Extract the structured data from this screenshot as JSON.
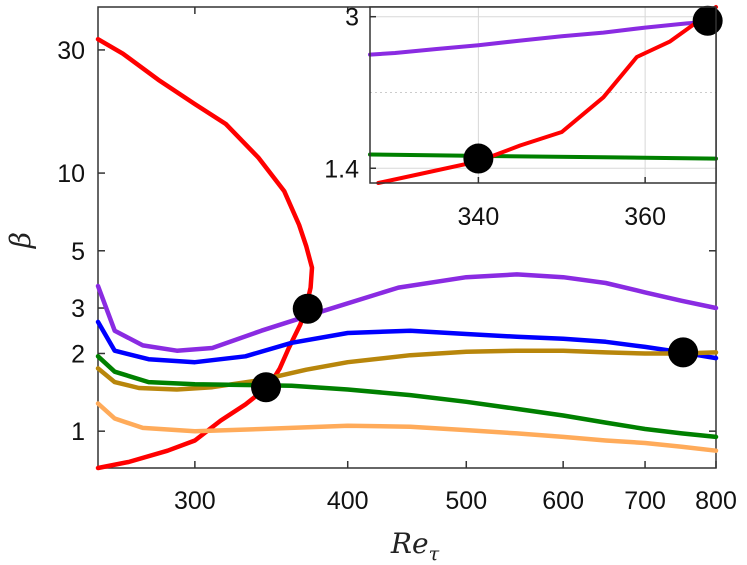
{
  "chart_data": {
    "type": "line",
    "title": "",
    "xlabel": "Re",
    "xlabel_subscript": "τ",
    "ylabel": "β",
    "xscale": "log",
    "yscale": "log",
    "xlim": [
      250,
      800
    ],
    "ylim": [
      0.72,
      44
    ],
    "xticks": [
      300,
      400,
      500,
      600,
      700,
      800
    ],
    "yticks": [
      1,
      2,
      3,
      5,
      10,
      30
    ],
    "grid": false,
    "legend": "none",
    "series": [
      {
        "color": "#ff0000",
        "points": [
          [
            250,
            0.72
          ],
          [
            265,
            0.76
          ],
          [
            285,
            0.84
          ],
          [
            300,
            0.92
          ],
          [
            315,
            1.1
          ],
          [
            330,
            1.27
          ],
          [
            345,
            1.5
          ],
          [
            352,
            1.75
          ],
          [
            358,
            2.1
          ],
          [
            366,
            2.6
          ],
          [
            370,
            3.05
          ],
          [
            373,
            3.6
          ],
          [
            374,
            4.3
          ],
          [
            370,
            5.2
          ],
          [
            365,
            6.3
          ],
          [
            355,
            8.5
          ],
          [
            338,
            11.5
          ],
          [
            318,
            15.5
          ],
          [
            300,
            18.5
          ],
          [
            280,
            23
          ],
          [
            262,
            29
          ],
          [
            250,
            33
          ]
        ]
      },
      {
        "color": "#8a2be2",
        "points": [
          [
            250,
            3.65
          ],
          [
            258,
            2.45
          ],
          [
            272,
            2.15
          ],
          [
            290,
            2.05
          ],
          [
            310,
            2.1
          ],
          [
            340,
            2.45
          ],
          [
            380,
            2.9
          ],
          [
            440,
            3.6
          ],
          [
            500,
            3.95
          ],
          [
            550,
            4.05
          ],
          [
            600,
            3.95
          ],
          [
            650,
            3.75
          ],
          [
            700,
            3.45
          ],
          [
            750,
            3.2
          ],
          [
            800,
            3.0
          ]
        ]
      },
      {
        "color": "#0000ff",
        "points": [
          [
            250,
            2.65
          ],
          [
            258,
            2.05
          ],
          [
            275,
            1.9
          ],
          [
            300,
            1.85
          ],
          [
            330,
            1.95
          ],
          [
            360,
            2.2
          ],
          [
            400,
            2.4
          ],
          [
            450,
            2.45
          ],
          [
            500,
            2.38
          ],
          [
            550,
            2.32
          ],
          [
            600,
            2.28
          ],
          [
            650,
            2.22
          ],
          [
            700,
            2.12
          ],
          [
            750,
            2.02
          ],
          [
            800,
            1.92
          ]
        ]
      },
      {
        "color": "#b8860b",
        "points": [
          [
            250,
            1.75
          ],
          [
            258,
            1.55
          ],
          [
            270,
            1.47
          ],
          [
            290,
            1.45
          ],
          [
            310,
            1.48
          ],
          [
            340,
            1.58
          ],
          [
            370,
            1.73
          ],
          [
            400,
            1.85
          ],
          [
            450,
            1.97
          ],
          [
            500,
            2.03
          ],
          [
            550,
            2.05
          ],
          [
            600,
            2.05
          ],
          [
            650,
            2.02
          ],
          [
            700,
            2.0
          ],
          [
            750,
            2.0
          ],
          [
            800,
            2.02
          ]
        ]
      },
      {
        "color": "#008000",
        "points": [
          [
            250,
            1.95
          ],
          [
            258,
            1.7
          ],
          [
            275,
            1.55
          ],
          [
            300,
            1.52
          ],
          [
            330,
            1.51
          ],
          [
            360,
            1.5
          ],
          [
            400,
            1.45
          ],
          [
            450,
            1.38
          ],
          [
            500,
            1.3
          ],
          [
            550,
            1.22
          ],
          [
            600,
            1.15
          ],
          [
            650,
            1.08
          ],
          [
            700,
            1.02
          ],
          [
            750,
            0.98
          ],
          [
            800,
            0.95
          ]
        ]
      },
      {
        "color": "#ffab5a",
        "points": [
          [
            250,
            1.28
          ],
          [
            258,
            1.12
          ],
          [
            272,
            1.03
          ],
          [
            300,
            1.0
          ],
          [
            340,
            1.02
          ],
          [
            400,
            1.05
          ],
          [
            450,
            1.04
          ],
          [
            500,
            1.01
          ],
          [
            550,
            0.98
          ],
          [
            600,
            0.95
          ],
          [
            650,
            0.92
          ],
          [
            700,
            0.9
          ],
          [
            750,
            0.87
          ],
          [
            800,
            0.84
          ]
        ]
      }
    ],
    "markers": [
      [
        343,
        1.48
      ],
      [
        371,
        2.98
      ],
      [
        752,
        2.02
      ]
    ],
    "inset": {
      "xscale": "linear",
      "yscale": "log",
      "xlim": [
        327,
        368.5
      ],
      "ylim": [
        1.3,
        3.15
      ],
      "xticks": [
        340,
        360
      ],
      "yticks": [
        1.4,
        3
      ],
      "grid": true,
      "series": [
        {
          "color": "#8a2be2",
          "points": [
            [
              327,
              2.48
            ],
            [
              330,
              2.5
            ],
            [
              335,
              2.55
            ],
            [
              340,
              2.6
            ],
            [
              345,
              2.66
            ],
            [
              350,
              2.72
            ],
            [
              355,
              2.77
            ],
            [
              360,
              2.84
            ],
            [
              365,
              2.9
            ],
            [
              368.5,
              2.93
            ]
          ]
        },
        {
          "color": "#008000",
          "points": [
            [
              327,
              1.5
            ],
            [
              340,
              1.49
            ],
            [
              355,
              1.48
            ],
            [
              368.5,
              1.47
            ]
          ]
        },
        {
          "color": "#ff0000",
          "points": [
            [
              328,
              1.3
            ],
            [
              333,
              1.36
            ],
            [
              340,
              1.45
            ],
            [
              345,
              1.57
            ],
            [
              350,
              1.68
            ],
            [
              355,
              2.0
            ],
            [
              359,
              2.45
            ],
            [
              363,
              2.65
            ],
            [
              366,
              2.9
            ],
            [
              368.5,
              3.15
            ]
          ]
        }
      ],
      "markers": [
        [
          340,
          1.47
        ],
        [
          367.5,
          2.94
        ]
      ]
    }
  }
}
